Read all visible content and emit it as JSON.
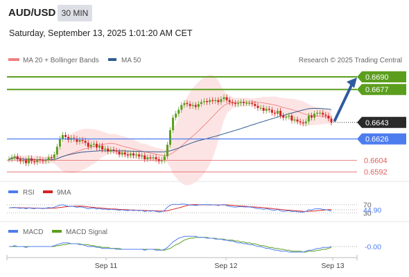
{
  "header": {
    "symbol": "AUD/USD",
    "timeframe": "30 MIN",
    "timestamp": "Saturday, September 13, 2025 1:01:20 AM CET"
  },
  "colors": {
    "resistance": "#5b9e1e",
    "current_price_tag": "#2a2a2a",
    "pivot": "#4d7cef",
    "support": "#e06060",
    "ma20_bollinger": "#f08080",
    "ma50": "#2f5b8f",
    "bollinger_fill": "#fcd8d8",
    "candle_up": "#5b9e1e",
    "candle_down": "#d42020",
    "forecast_arrow": "#2f5b9e",
    "rsi": "#4d7cef",
    "rsi_ma": "#d42020",
    "macd": "#4d7cef",
    "macd_signal": "#5b9e1e"
  },
  "chart_data": [
    {
      "type": "candlestick",
      "title": "AUD/USD 30 MIN",
      "legend": [
        "MA 20 + Bollinger Bands",
        "MA 50"
      ],
      "watermark": "Research © 2025 Trading Central",
      "x_ticks": [
        "Sep 11",
        "Sep 12",
        "Sep 13"
      ],
      "levels": [
        {
          "label": "0.6690",
          "value": 0.669,
          "kind": "resistance"
        },
        {
          "label": "0.6677",
          "value": 0.6677,
          "kind": "resistance"
        },
        {
          "label": "0.6643",
          "value": 0.6643,
          "kind": "current"
        },
        {
          "label": "0.6626",
          "value": 0.6626,
          "kind": "pivot"
        },
        {
          "label": "0.6604",
          "value": 0.6604,
          "kind": "support"
        },
        {
          "label": "0.6592",
          "value": 0.6592,
          "kind": "support"
        }
      ],
      "forecast_target": 0.669,
      "closes": [
        0.6605,
        0.6607,
        0.6608,
        0.6605,
        0.6603,
        0.6604,
        0.6601,
        0.6606,
        0.6603,
        0.6602,
        0.6605,
        0.6604,
        0.6603,
        0.6604,
        0.6607,
        0.6606,
        0.661,
        0.6618,
        0.6626,
        0.663,
        0.6628,
        0.6625,
        0.6627,
        0.6626,
        0.6623,
        0.6625,
        0.6624,
        0.6622,
        0.6618,
        0.662,
        0.6621,
        0.6617,
        0.6619,
        0.6615,
        0.6616,
        0.6613,
        0.6615,
        0.6614,
        0.6613,
        0.661,
        0.6612,
        0.661,
        0.6609,
        0.6611,
        0.6609,
        0.661,
        0.6608,
        0.6609,
        0.6605,
        0.6607,
        0.6606,
        0.6607,
        0.6605,
        0.6603,
        0.6604,
        0.6608,
        0.662,
        0.6635,
        0.6648,
        0.6652,
        0.6656,
        0.6661,
        0.6663,
        0.6662,
        0.666,
        0.6661,
        0.6659,
        0.6662,
        0.6664,
        0.6665,
        0.6664,
        0.6666,
        0.6665,
        0.6666,
        0.6664,
        0.6667,
        0.6669,
        0.6666,
        0.6664,
        0.6663,
        0.6662,
        0.6663,
        0.6664,
        0.6663,
        0.6663,
        0.6663,
        0.6662,
        0.666,
        0.6658,
        0.6658,
        0.6655,
        0.6657,
        0.6656,
        0.6653,
        0.6652,
        0.6655,
        0.665,
        0.6648,
        0.6649,
        0.665,
        0.6645,
        0.6646,
        0.6644,
        0.6643,
        0.6642,
        0.6644,
        0.665,
        0.6648,
        0.6652,
        0.6653,
        0.6653,
        0.6651,
        0.665,
        0.6647,
        0.6643
      ],
      "ylim": [
        0.6585,
        0.67
      ]
    },
    {
      "type": "line",
      "title": "RSI",
      "series": [
        {
          "name": "RSI"
        },
        {
          "name": "9MA"
        }
      ],
      "levels": [
        70,
        30
      ],
      "current_label": "44.90",
      "current_value": 44.9,
      "ylim": [
        0,
        100
      ],
      "rsi": [
        55,
        56,
        57,
        54,
        52,
        54,
        50,
        55,
        52,
        51,
        54,
        52,
        51,
        53,
        56,
        54,
        58,
        63,
        68,
        70,
        66,
        62,
        63,
        61,
        57,
        60,
        58,
        55,
        50,
        53,
        54,
        49,
        52,
        47,
        49,
        45,
        48,
        46,
        45,
        42,
        45,
        42,
        41,
        44,
        41,
        43,
        40,
        42,
        36,
        40,
        38,
        40,
        37,
        34,
        36,
        42,
        58,
        68,
        72,
        72,
        71,
        73,
        73,
        71,
        68,
        69,
        66,
        69,
        70,
        71,
        69,
        71,
        69,
        70,
        66,
        70,
        71,
        66,
        62,
        60,
        58,
        60,
        61,
        59,
        59,
        59,
        57,
        54,
        51,
        51,
        47,
        50,
        48,
        44,
        42,
        47,
        40,
        37,
        39,
        41,
        36,
        38,
        35,
        34,
        33,
        37,
        46,
        43,
        49,
        50,
        50,
        47,
        46,
        42,
        39
      ]
    },
    {
      "type": "line",
      "title": "MACD",
      "series": [
        {
          "name": "MACD"
        },
        {
          "name": "MACD Signal"
        }
      ],
      "current_label": "-0.00",
      "current_value": -0.0,
      "ylim": [
        -0.0012,
        0.0012
      ],
      "macd": [
        0.0,
        0.0,
        0.0001,
        0.0,
        0.0,
        0.0,
        -0.0001,
        0.0,
        0.0,
        0.0,
        0.0,
        0.0,
        0.0,
        0.0,
        0.0,
        0.0,
        0.0001,
        0.0002,
        0.0003,
        0.0004,
        0.0004,
        0.0004,
        0.0003,
        0.0003,
        0.0003,
        0.0002,
        0.0002,
        0.0001,
        0.0,
        0.0,
        0.0,
        -0.0001,
        -0.0001,
        -0.0002,
        -0.0002,
        -0.0002,
        -0.0002,
        -0.0002,
        -0.0003,
        -0.0003,
        -0.0003,
        -0.0003,
        -0.0003,
        -0.0003,
        -0.0003,
        -0.0003,
        -0.0003,
        -0.0003,
        -0.0004,
        -0.0003,
        -0.0003,
        -0.0003,
        -0.0004,
        -0.0004,
        -0.0004,
        -0.0003,
        -0.0001,
        0.0002,
        0.0005,
        0.0007,
        0.0009,
        0.001,
        0.0011,
        0.0011,
        0.0011,
        0.0011,
        0.0011,
        0.001,
        0.001,
        0.001,
        0.0009,
        0.0009,
        0.0009,
        0.0008,
        0.0008,
        0.0008,
        0.0007,
        0.0007,
        0.0006,
        0.0006,
        0.0005,
        0.0004,
        0.0004,
        0.0003,
        0.0003,
        0.0002,
        0.0002,
        0.0001,
        0.0,
        0.0,
        -0.0001,
        -0.0002,
        -0.0002,
        -0.0003,
        -0.0004,
        -0.0004,
        -0.0005,
        -0.0005,
        -0.0005,
        -0.0006,
        -0.0006,
        -0.0006,
        -0.0006,
        -0.0006,
        -0.0006,
        -0.0005,
        -0.0004,
        -0.0004,
        -0.0003,
        -0.0002,
        -0.0002,
        -0.0001,
        -0.0001,
        -0.0001,
        0.0
      ],
      "signal": [
        0.0,
        0.0,
        0.0,
        0.0,
        0.0,
        0.0,
        0.0,
        0.0,
        0.0,
        0.0,
        0.0,
        0.0,
        0.0,
        0.0,
        0.0,
        0.0,
        0.0,
        0.0001,
        0.0001,
        0.0002,
        0.0002,
        0.0003,
        0.0003,
        0.0003,
        0.0003,
        0.0003,
        0.0002,
        0.0002,
        0.0002,
        0.0001,
        0.0001,
        0.0,
        0.0,
        -0.0001,
        -0.0001,
        -0.0001,
        -0.0002,
        -0.0002,
        -0.0002,
        -0.0002,
        -0.0003,
        -0.0003,
        -0.0003,
        -0.0003,
        -0.0003,
        -0.0003,
        -0.0003,
        -0.0003,
        -0.0003,
        -0.0003,
        -0.0003,
        -0.0003,
        -0.0003,
        -0.0003,
        -0.0004,
        -0.0004,
        -0.0003,
        -0.0002,
        0.0,
        0.0002,
        0.0003,
        0.0005,
        0.0007,
        0.0008,
        0.0009,
        0.0009,
        0.001,
        0.001,
        0.001,
        0.001,
        0.001,
        0.0009,
        0.0009,
        0.0009,
        0.0008,
        0.0008,
        0.0008,
        0.0007,
        0.0007,
        0.0007,
        0.0006,
        0.0006,
        0.0005,
        0.0005,
        0.0004,
        0.0004,
        0.0003,
        0.0003,
        0.0002,
        0.0001,
        0.0001,
        0.0,
        -0.0001,
        -0.0001,
        -0.0002,
        -0.0002,
        -0.0003,
        -0.0003,
        -0.0004,
        -0.0004,
        -0.0005,
        -0.0005,
        -0.0005,
        -0.0005,
        -0.0006,
        -0.0006,
        -0.0005,
        -0.0005,
        -0.0005,
        -0.0004,
        -0.0004,
        -0.0003,
        -0.0003,
        -0.0002,
        -0.0001
      ]
    }
  ]
}
